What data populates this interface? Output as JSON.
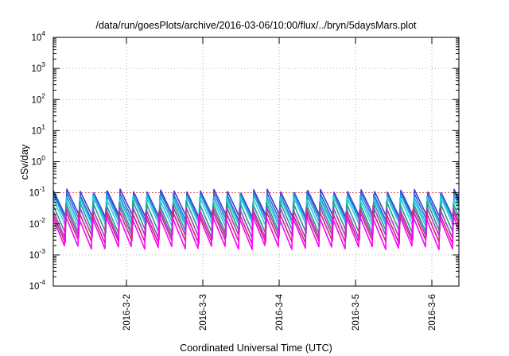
{
  "chart_data": {
    "type": "line",
    "title": "/data/run/goesPlots/archive/2016-03-06/10:00/flux/../bryn/5daysMars.plot",
    "xlabel": "Coordinated Universal Time (UTC)",
    "ylabel": "cSv/day",
    "x_range": [
      "2016-03-01T01:00",
      "2016-03-06T08:30"
    ],
    "x_ticks": [
      {
        "label": "2016-3-2",
        "date": "2016-03-02T00:00"
      },
      {
        "label": "2016-3-3",
        "date": "2016-03-03T00:00"
      },
      {
        "label": "2016-3-4",
        "date": "2016-03-04T00:00"
      },
      {
        "label": "2016-3-5",
        "date": "2016-03-05T00:00"
      },
      {
        "label": "2016-3-6",
        "date": "2016-03-06T00:00"
      }
    ],
    "y_scale": "log",
    "ylim": [
      0.0001,
      10000
    ],
    "y_ticks": [
      {
        "base": "10",
        "exp": "4"
      },
      {
        "base": "10",
        "exp": "3"
      },
      {
        "base": "10",
        "exp": "2"
      },
      {
        "base": "10",
        "exp": "1"
      },
      {
        "base": "10",
        "exp": "0"
      },
      {
        "base": "10",
        "exp": "-1"
      },
      {
        "base": "10",
        "exp": "-2"
      },
      {
        "base": "10",
        "exp": "-3"
      },
      {
        "base": "10",
        "exp": "-4"
      }
    ],
    "grid": true,
    "approx_cycle_hours": 4.2,
    "series": [
      {
        "color": "#3b3bd6",
        "peak": 0.12,
        "trough": 0.015
      },
      {
        "color": "#2f6bd8",
        "peak": 0.1,
        "trough": 0.012
      },
      {
        "color": "#1fa7d6",
        "peak": 0.085,
        "trough": 0.01
      },
      {
        "color": "#2fd0e0",
        "peak": 0.07,
        "trough": 0.008
      },
      {
        "color": "#2a9d8f",
        "peak": 0.05,
        "trough": 0.005
      },
      {
        "color": "#9b3fbf",
        "peak": 0.035,
        "trough": 0.0035
      },
      {
        "color": "#c22d6e",
        "peak": 0.025,
        "trough": 0.0025
      },
      {
        "color": "#ff00ff",
        "peak": 0.018,
        "trough": 0.0016
      }
    ],
    "reference_line": {
      "color": "#e02020",
      "value": 0.1
    }
  }
}
